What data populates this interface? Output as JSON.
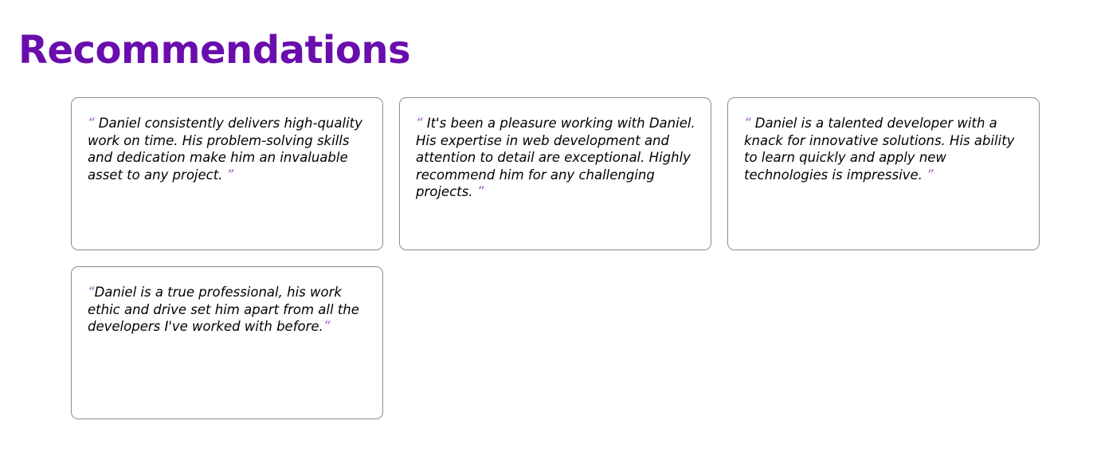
{
  "section": {
    "title": "Recommendations"
  },
  "colors": {
    "accent": "#6a0dad",
    "quote_mark": "#9b59b6",
    "card_border": "#8c8c8c",
    "text": "#000000"
  },
  "recommendations": [
    {
      "open_mark": "“ ",
      "text": "Daniel consistently delivers high-quality work on time. His problem-solving skills and dedication make him an invaluable asset to any project.",
      "close_mark": " ”"
    },
    {
      "open_mark": "“ ",
      "text": "It's been a pleasure working with Daniel. His expertise in web development and attention to detail are exceptional. Highly recommend him for any challenging projects.",
      "close_mark": " ”"
    },
    {
      "open_mark": "“ ",
      "text": "Daniel is a talented developer with a knack for innovative solutions. His ability to learn quickly and apply new technologies is impressive.",
      "close_mark": " ”"
    },
    {
      "open_mark": "“",
      "text": "Daniel is a true professional, his work ethic and drive set him apart from all the developers I've worked with before.",
      "close_mark": "”"
    }
  ]
}
